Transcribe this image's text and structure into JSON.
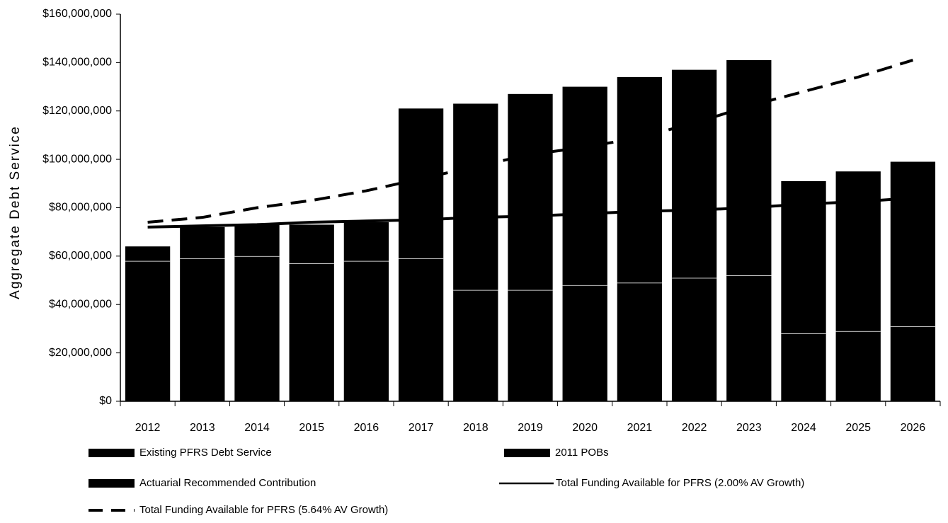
{
  "chart_data": {
    "type": "bar",
    "y_label": "Aggregate Debt Service",
    "categories": [
      "2012",
      "2013",
      "2014",
      "2015",
      "2016",
      "2017",
      "2018",
      "2019",
      "2020",
      "2021",
      "2022",
      "2023",
      "2024",
      "2025",
      "2026"
    ],
    "series": [
      {
        "name": "Existing PFRS Debt Service",
        "type": "bar",
        "color": "#000000",
        "values": [
          58000000,
          59000000,
          60000000,
          57000000,
          58000000,
          59000000,
          46000000,
          46000000,
          48000000,
          49000000,
          51000000,
          52000000,
          28000000,
          29000000,
          31000000
        ]
      },
      {
        "name": "2011 POBs",
        "type": "bar",
        "color": "#000000",
        "values": [
          6000000,
          13000000,
          13000000,
          16000000,
          16000000,
          0,
          0,
          0,
          0,
          0,
          0,
          0,
          0,
          0,
          0
        ]
      },
      {
        "name": "Actuarial Recommended Contribution",
        "type": "bar",
        "color": "#000000",
        "values": [
          0,
          0,
          0,
          0,
          0,
          62000000,
          77000000,
          81000000,
          82000000,
          85000000,
          86000000,
          89000000,
          63000000,
          66000000,
          68000000
        ]
      },
      {
        "name": "Total Funding Available for PFRS (2.00% AV Growth)",
        "type": "line",
        "style": "solid",
        "color": "#000000",
        "values": [
          72000000,
          72500000,
          73000000,
          74000000,
          74500000,
          75000000,
          76000000,
          76500000,
          77500000,
          78500000,
          79000000,
          80000000,
          81500000,
          82500000,
          84000000
        ]
      },
      {
        "name": "Total Funding Available for PFRS (5.64% AV Growth)",
        "type": "line",
        "style": "dashed",
        "color": "#000000",
        "values": [
          74000000,
          76000000,
          80000000,
          83000000,
          87000000,
          92000000,
          97000000,
          102000000,
          105000000,
          109000000,
          115000000,
          122000000,
          128000000,
          134000000,
          141000000
        ]
      }
    ],
    "ylim": [
      0,
      160000000
    ],
    "yticks": [
      {
        "value": 0,
        "label": "$0"
      },
      {
        "value": 20000000,
        "label": "$20,000,000"
      },
      {
        "value": 40000000,
        "label": "$40,000,000"
      },
      {
        "value": 60000000,
        "label": "$60,000,000"
      },
      {
        "value": 80000000,
        "label": "$80,000,000"
      },
      {
        "value": 100000000,
        "label": "$100,000,000"
      },
      {
        "value": 120000000,
        "label": "$120,000,000"
      },
      {
        "value": 140000000,
        "label": "$140,000,000"
      },
      {
        "value": 160000000,
        "label": "$160,000,000"
      }
    ],
    "grid": false
  }
}
